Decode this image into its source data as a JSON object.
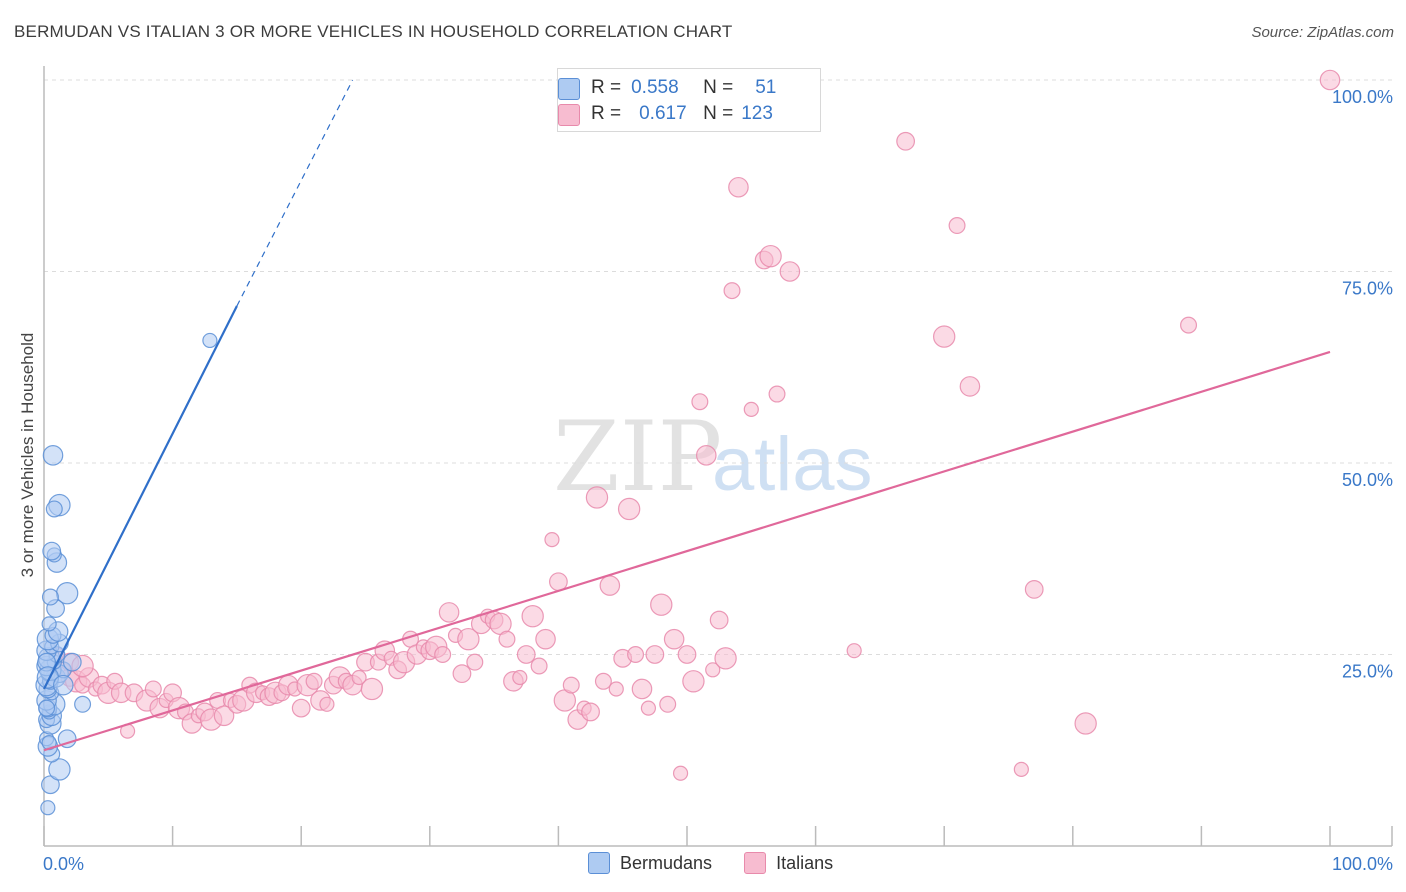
{
  "title": "BERMUDAN VS ITALIAN 3 OR MORE VEHICLES IN HOUSEHOLD CORRELATION CHART",
  "source": "Source: ZipAtlas.com",
  "watermark": {
    "zip": "ZIP",
    "atlas": "atlas"
  },
  "legend_top": {
    "rows": [
      {
        "r_label": "R =",
        "r_value": "0.558",
        "n_label": "N =",
        "n_value": "51"
      },
      {
        "r_label": "R =",
        "r_value": "0.617",
        "n_label": "N =",
        "n_value": "123"
      }
    ]
  },
  "legend_bottom": {
    "items": [
      "Bermudans",
      "Italians"
    ]
  },
  "colors": {
    "blue_fill": "#aecbf2",
    "blue_stroke": "#5b8fd6",
    "blue_line": "#2f6fc9",
    "pink_fill": "#f7bcd0",
    "pink_stroke": "#e88aab",
    "pink_line": "#e0689a",
    "axis_text": "#3a78c8",
    "grid": "#dcdcdc"
  },
  "chart_data": {
    "type": "scatter",
    "title": "BERMUDAN VS ITALIAN 3 OR MORE VEHICLES IN HOUSEHOLD CORRELATION CHART",
    "xlabel": "",
    "ylabel": "3 or more Vehicles in Household",
    "xlim": [
      0,
      100
    ],
    "ylim": [
      0,
      100
    ],
    "x_tick_labels": [
      {
        "value": 0,
        "label": "0.0%"
      },
      {
        "value": 100,
        "label": "100.0%"
      }
    ],
    "y_tick_labels": [
      {
        "value": 25,
        "label": "25.0%"
      },
      {
        "value": 50,
        "label": "50.0%"
      },
      {
        "value": 75,
        "label": "75.0%"
      },
      {
        "value": 100,
        "label": "100.0%"
      }
    ],
    "series": [
      {
        "name": "Bermudans",
        "r": 0.558,
        "n": 51,
        "trend": {
          "x0": 0,
          "y0": 20.5,
          "x1": 15,
          "y1": 70.5,
          "dash_x1": 24,
          "dash_y1": 100
        },
        "points": [
          [
            0.3,
            5
          ],
          [
            0.5,
            8
          ],
          [
            1.2,
            10
          ],
          [
            0.6,
            12
          ],
          [
            0.3,
            13
          ],
          [
            0.2,
            14
          ],
          [
            1.8,
            14
          ],
          [
            0.5,
            16
          ],
          [
            0.2,
            16.5
          ],
          [
            0.6,
            17
          ],
          [
            0.4,
            17.5
          ],
          [
            0.3,
            18
          ],
          [
            0.8,
            18.5
          ],
          [
            3.0,
            18.5
          ],
          [
            0.2,
            19
          ],
          [
            0.6,
            20
          ],
          [
            0.3,
            20.5
          ],
          [
            0.2,
            21
          ],
          [
            0.5,
            21.5
          ],
          [
            0.9,
            22
          ],
          [
            0.3,
            22.5
          ],
          [
            1.2,
            22.5
          ],
          [
            0.5,
            23
          ],
          [
            1.5,
            23
          ],
          [
            0.2,
            23.5
          ],
          [
            0.8,
            24
          ],
          [
            2.2,
            24
          ],
          [
            0.4,
            24.5
          ],
          [
            1.0,
            25
          ],
          [
            0.2,
            25.5
          ],
          [
            0.6,
            26
          ],
          [
            1.2,
            26.5
          ],
          [
            0.3,
            27
          ],
          [
            0.7,
            27.5
          ],
          [
            1.1,
            28
          ],
          [
            0.4,
            29
          ],
          [
            0.9,
            31
          ],
          [
            1.8,
            33
          ],
          [
            0.5,
            32.5
          ],
          [
            1.0,
            37
          ],
          [
            0.8,
            38
          ],
          [
            0.6,
            38.5
          ],
          [
            1.2,
            44.5
          ],
          [
            0.8,
            44
          ],
          [
            0.7,
            51
          ],
          [
            12.9,
            66
          ],
          [
            0.2,
            24
          ],
          [
            0.3,
            22
          ],
          [
            0.2,
            18
          ],
          [
            1.5,
            21
          ],
          [
            0.4,
            13.5
          ]
        ]
      },
      {
        "name": "Italians",
        "r": 0.617,
        "n": 123,
        "trend": {
          "x0": 0,
          "y0": 12.5,
          "x1": 100,
          "y1": 64.5
        },
        "points": [
          [
            1.5,
            23
          ],
          [
            2,
            22
          ],
          [
            2.5,
            21.5
          ],
          [
            3,
            21
          ],
          [
            3.5,
            22
          ],
          [
            4,
            20.5
          ],
          [
            4.5,
            21
          ],
          [
            5,
            20
          ],
          [
            5.5,
            21.5
          ],
          [
            6,
            20
          ],
          [
            6.5,
            15
          ],
          [
            7,
            20
          ],
          [
            8,
            19
          ],
          [
            8.5,
            20.5
          ],
          [
            9,
            18
          ],
          [
            9.5,
            19
          ],
          [
            10,
            20
          ],
          [
            10.5,
            18
          ],
          [
            11,
            17.5
          ],
          [
            11.5,
            16
          ],
          [
            12,
            17
          ],
          [
            12.5,
            17.5
          ],
          [
            13,
            16.5
          ],
          [
            13.5,
            19
          ],
          [
            14,
            17
          ],
          [
            14.5,
            19
          ],
          [
            15,
            18.5
          ],
          [
            15.5,
            19
          ],
          [
            16,
            21
          ],
          [
            16.5,
            20
          ],
          [
            17,
            20
          ],
          [
            17.5,
            19.5
          ],
          [
            18,
            20
          ],
          [
            18.5,
            20
          ],
          [
            19,
            21
          ],
          [
            19.5,
            20.5
          ],
          [
            20,
            18
          ],
          [
            20.5,
            21
          ],
          [
            21,
            21.5
          ],
          [
            21.5,
            19
          ],
          [
            22,
            18.5
          ],
          [
            22.5,
            21
          ],
          [
            23,
            22
          ],
          [
            23.5,
            21.5
          ],
          [
            24,
            21
          ],
          [
            24.5,
            22
          ],
          [
            25,
            24
          ],
          [
            25.5,
            20.5
          ],
          [
            26,
            24
          ],
          [
            26.5,
            25.5
          ],
          [
            27,
            24.5
          ],
          [
            27.5,
            23
          ],
          [
            28,
            24
          ],
          [
            28.5,
            27
          ],
          [
            29,
            25
          ],
          [
            29.5,
            26
          ],
          [
            30,
            25.5
          ],
          [
            30.5,
            26
          ],
          [
            31,
            25
          ],
          [
            31.5,
            30.5
          ],
          [
            32,
            27.5
          ],
          [
            32.5,
            22.5
          ],
          [
            33,
            27
          ],
          [
            33.5,
            24
          ],
          [
            34,
            29
          ],
          [
            34.5,
            30
          ],
          [
            35,
            29.5
          ],
          [
            35.5,
            29
          ],
          [
            36,
            27
          ],
          [
            36.5,
            21.5
          ],
          [
            37,
            22
          ],
          [
            37.5,
            25
          ],
          [
            38,
            30
          ],
          [
            38.5,
            23.5
          ],
          [
            39,
            27
          ],
          [
            39.5,
            40
          ],
          [
            40,
            34.5
          ],
          [
            40.5,
            19
          ],
          [
            41,
            21
          ],
          [
            41.5,
            16.5
          ],
          [
            42,
            18
          ],
          [
            42.5,
            17.5
          ],
          [
            43,
            45.5
          ],
          [
            43.5,
            21.5
          ],
          [
            44,
            34
          ],
          [
            44.5,
            20.5
          ],
          [
            45,
            24.5
          ],
          [
            45.5,
            44
          ],
          [
            46,
            25
          ],
          [
            46.5,
            20.5
          ],
          [
            47,
            18
          ],
          [
            47.5,
            25
          ],
          [
            48,
            31.5
          ],
          [
            48.5,
            18.5
          ],
          [
            49,
            27
          ],
          [
            49.5,
            9.5
          ],
          [
            50,
            25
          ],
          [
            50.5,
            21.5
          ],
          [
            51,
            58
          ],
          [
            51.5,
            51
          ],
          [
            52,
            23
          ],
          [
            52.5,
            29.5
          ],
          [
            53,
            24.5
          ],
          [
            53.5,
            72.5
          ],
          [
            54,
            86
          ],
          [
            55,
            57
          ],
          [
            56,
            76.5
          ],
          [
            56.5,
            77
          ],
          [
            57,
            59
          ],
          [
            58,
            75
          ],
          [
            63,
            25.5
          ],
          [
            67,
            92
          ],
          [
            70,
            66.5
          ],
          [
            71,
            81
          ],
          [
            72,
            60
          ],
          [
            76,
            10
          ],
          [
            77,
            33.5
          ],
          [
            81,
            16
          ],
          [
            89,
            68
          ],
          [
            100,
            100
          ],
          [
            1,
            25
          ],
          [
            2,
            24
          ],
          [
            3,
            23.5
          ]
        ]
      }
    ]
  }
}
